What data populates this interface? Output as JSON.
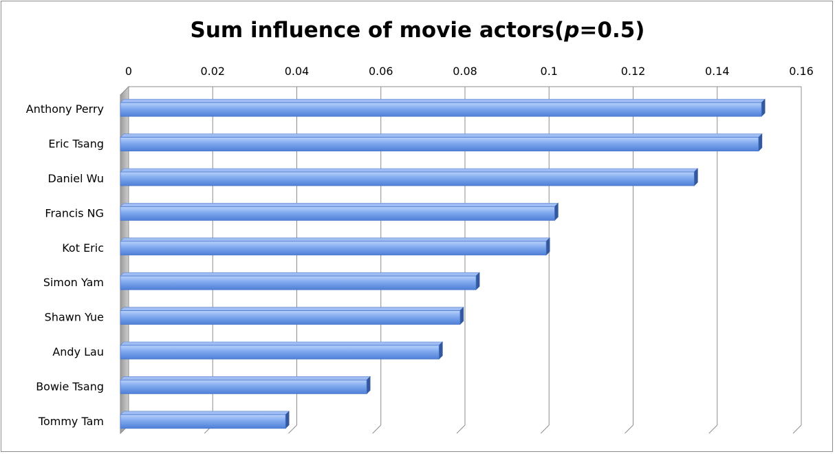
{
  "chart_data": {
    "type": "bar",
    "orientation": "horizontal",
    "title_main": "Sum influence of movie actors(",
    "title_var": "p",
    "title_rest": "=0.5)",
    "xlabel": "",
    "ylabel": "",
    "xlim": [
      0,
      0.16
    ],
    "x_ticks": [
      "0",
      "0.02",
      "0.04",
      "0.06",
      "0.08",
      "0.1",
      "0.12",
      "0.14",
      "0.16"
    ],
    "x_tick_values": [
      0,
      0.02,
      0.04,
      0.06,
      0.08,
      0.1,
      0.12,
      0.14,
      0.16
    ],
    "x_axis_position": "top",
    "grid": true,
    "legend": "none",
    "categories": [
      "Anthony Perry",
      "Eric Tsang",
      "Daniel Wu",
      "Francis NG",
      "Kot Eric",
      "Simon Yam",
      "Shawn Yue",
      "Andy Lau",
      "Bowie Tsang",
      "Tommy Tam"
    ],
    "values": [
      0.1525,
      0.1518,
      0.1365,
      0.1033,
      0.1013,
      0.0846,
      0.0808,
      0.0758,
      0.0586,
      0.0393
    ],
    "colors": {
      "bar_light": "#b8d1fb",
      "bar_mid": "#7ea8ee",
      "bar_dark": "#4f7fd6",
      "bar_end": "#34589e",
      "grid": "#8c8c8c",
      "wall": "#b3b3b3"
    }
  }
}
